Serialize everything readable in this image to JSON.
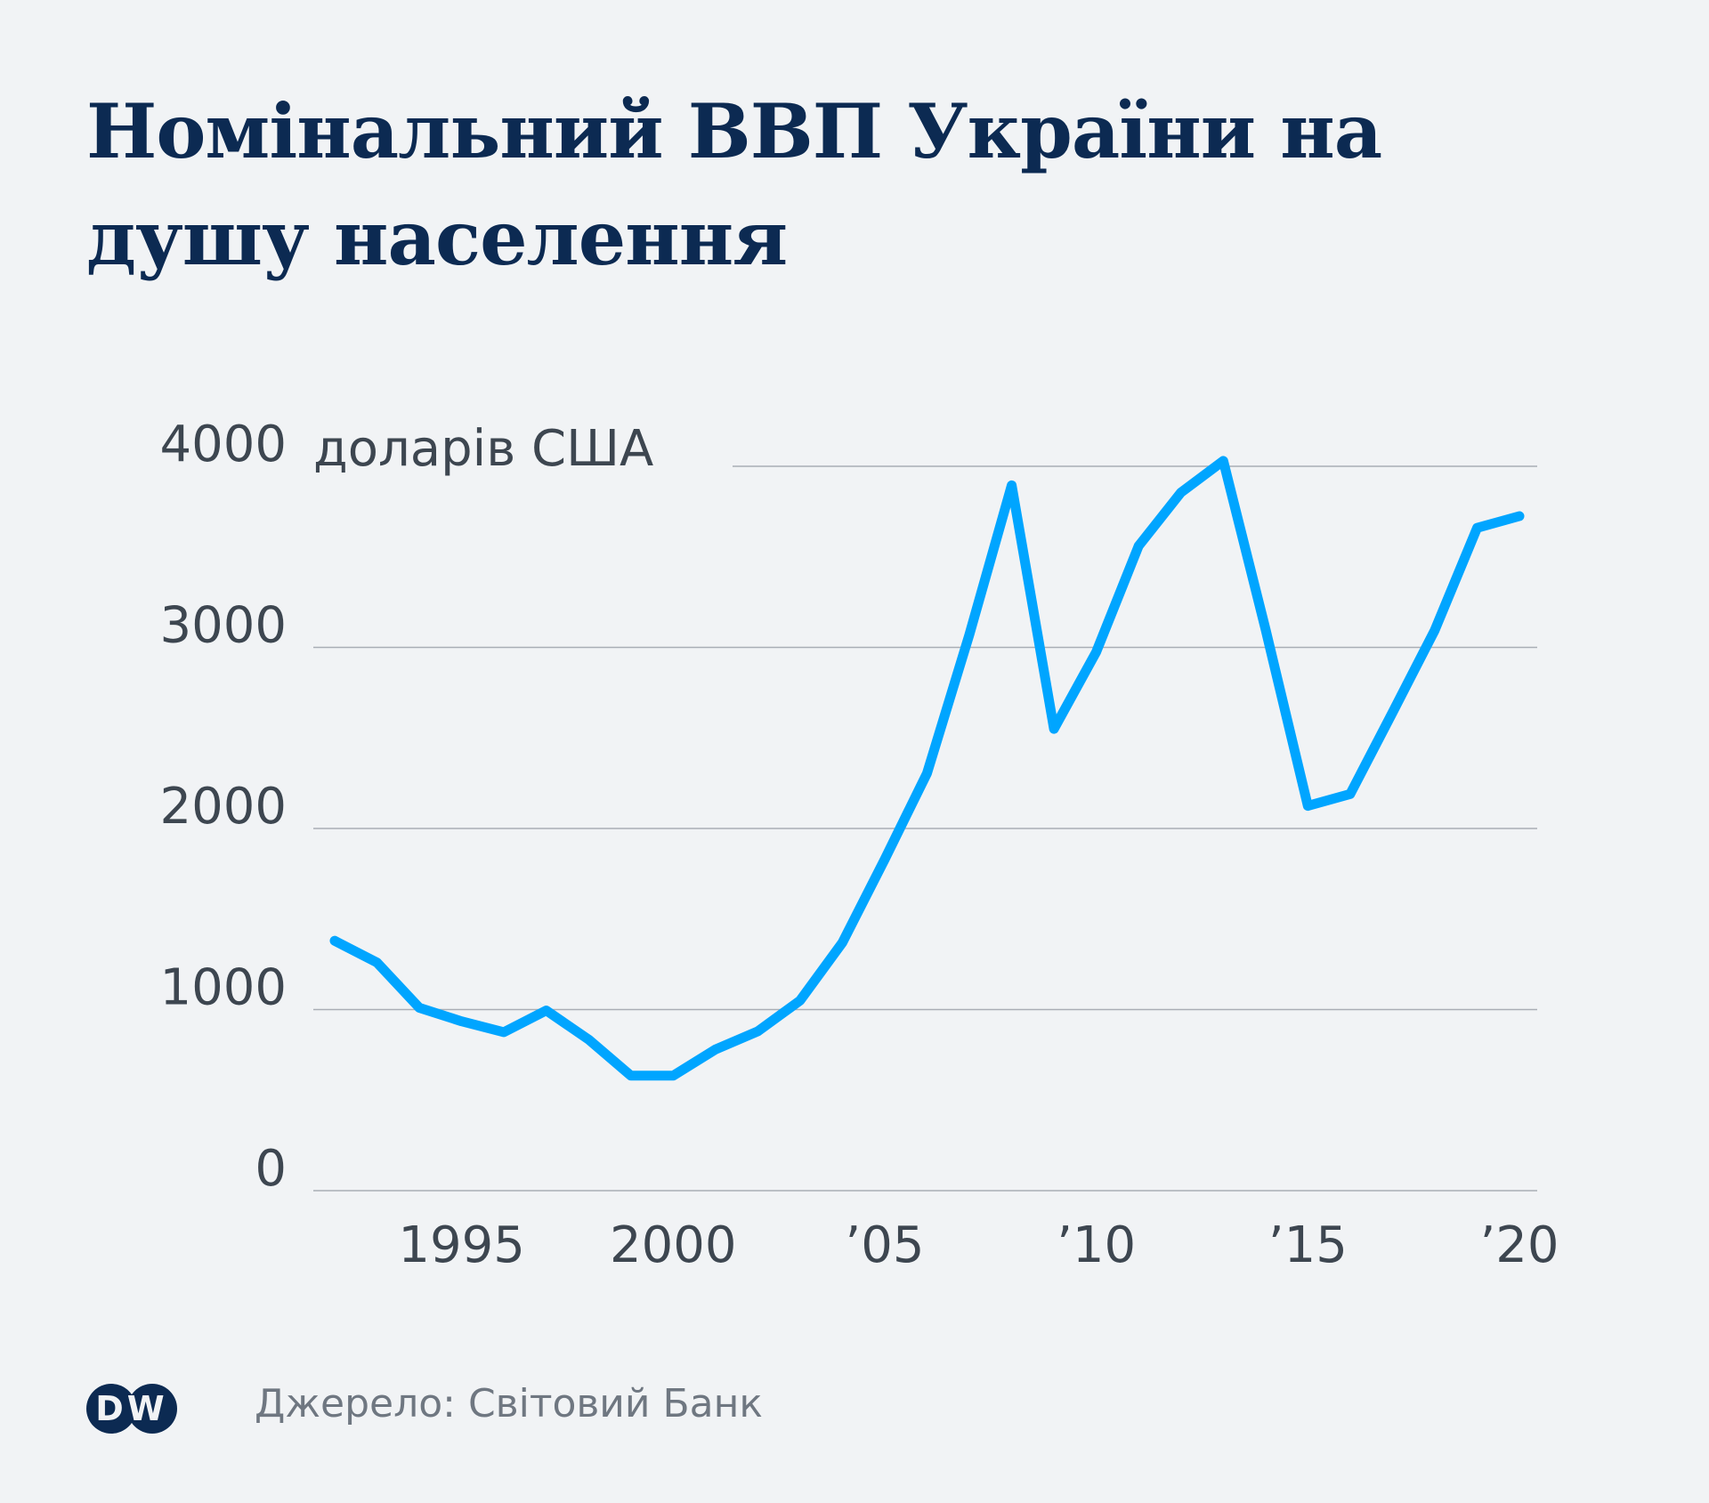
{
  "title": "Номінальний ВВП України на душу населення",
  "unit_label": "доларів США",
  "source": "Джерело: Світовий Банк",
  "logo_text": "DW",
  "colors": {
    "line": "#00a5ff",
    "title": "#0c2a52",
    "grid": "#a9aeb5",
    "background": "#f1f3f5",
    "logo": "#0c2a52"
  },
  "chart_data": {
    "type": "line",
    "title": "Номінальний ВВП України на душу населення",
    "ylabel": "доларів США",
    "ylim": [
      0,
      4000
    ],
    "xlim": [
      1992,
      2020
    ],
    "y_ticks": [
      {
        "value": 0,
        "label": "0"
      },
      {
        "value": 1000,
        "label": "1000"
      },
      {
        "value": 2000,
        "label": "2000"
      },
      {
        "value": 3000,
        "label": "3000"
      },
      {
        "value": 4000,
        "label": "4000"
      }
    ],
    "x_ticks": [
      {
        "value": 1995,
        "label": "1995"
      },
      {
        "value": 2000,
        "label": "2000"
      },
      {
        "value": 2005,
        "label": "’05"
      },
      {
        "value": 2010,
        "label": "’10"
      },
      {
        "value": 2015,
        "label": "’15"
      },
      {
        "value": 2020,
        "label": "’20"
      }
    ],
    "grid": true,
    "series": [
      {
        "x": [
          1992,
          1993,
          1994,
          1995,
          1996,
          1997,
          1998,
          1999,
          2000,
          2001,
          2002,
          2003,
          2004,
          2005,
          2006,
          2007,
          2008,
          2009,
          2010,
          2011,
          2012,
          2013,
          2014,
          2015,
          2016,
          2017,
          2018,
          2019,
          2020
        ],
        "y": [
          1380,
          1260,
          1010,
          935,
          875,
          995,
          835,
          635,
          635,
          780,
          880,
          1050,
          1370,
          1830,
          2305,
          3070,
          3895,
          2550,
          2975,
          3560,
          3855,
          4030,
          3100,
          2125,
          2190,
          2640,
          3095,
          3660,
          3725
        ]
      }
    ]
  }
}
